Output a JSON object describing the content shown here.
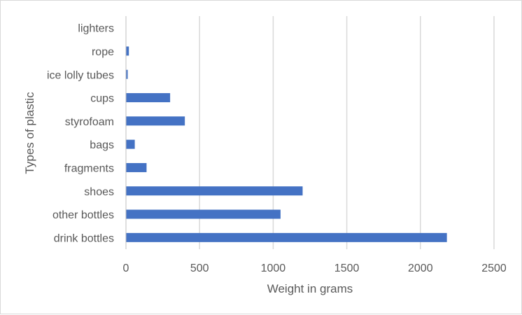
{
  "chart_data": {
    "type": "bar",
    "orientation": "horizontal",
    "categories": [
      "drink bottles",
      "other bottles",
      "shoes",
      "fragments",
      "bags",
      "styrofoam",
      "cups",
      "ice lolly tubes",
      "rope",
      "lighters"
    ],
    "values": [
      2180,
      1050,
      1200,
      140,
      60,
      400,
      300,
      12,
      20,
      0
    ],
    "xlabel": "Weight in grams",
    "ylabel": "Types of plastic",
    "xlim": [
      0,
      2500
    ],
    "x_ticks": [
      "0",
      "500",
      "1000",
      "1500",
      "2000",
      "2500"
    ],
    "grid": "vertical",
    "bar_color": "#4472c4",
    "legend": "none"
  }
}
